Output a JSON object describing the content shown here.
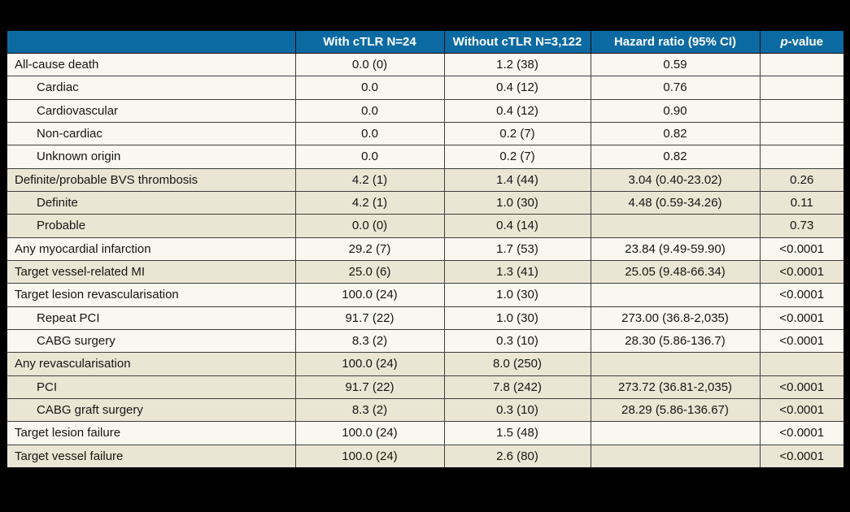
{
  "colors": {
    "header_background": "#0c6aa3",
    "header_text": "#ffffff",
    "row_plain": "#f9f7f0",
    "row_shaded": "#ebe6d4",
    "border": "#3e3e3e",
    "page_background": "#000000",
    "body_text": "#151515"
  },
  "table": {
    "columns": [
      {
        "label": ""
      },
      {
        "label": "With cTLR N=24"
      },
      {
        "label": "Without cTLR N=3,122"
      },
      {
        "label": "Hazard ratio (95% CI)"
      },
      {
        "label_italic": "p",
        "label_rest": "-value"
      }
    ],
    "rows": [
      {
        "label": "All-cause death",
        "indent": false,
        "shaded": false,
        "cells": [
          "0.0 (0)",
          "1.2 (38)",
          "0.59",
          ""
        ]
      },
      {
        "label": "Cardiac",
        "indent": true,
        "shaded": false,
        "cells": [
          "0.0",
          "0.4 (12)",
          "0.76",
          ""
        ]
      },
      {
        "label": "Cardiovascular",
        "indent": true,
        "shaded": false,
        "cells": [
          "0.0",
          "0.4 (12)",
          "0.90",
          ""
        ]
      },
      {
        "label": "Non-cardiac",
        "indent": true,
        "shaded": false,
        "cells": [
          "0.0",
          "0.2 (7)",
          "0.82",
          ""
        ]
      },
      {
        "label": "Unknown origin",
        "indent": true,
        "shaded": false,
        "cells": [
          "0.0",
          "0.2 (7)",
          "0.82",
          ""
        ]
      },
      {
        "label": "Definite/probable BVS thrombosis",
        "indent": false,
        "shaded": true,
        "cells": [
          "4.2 (1)",
          "1.4 (44)",
          "3.04 (0.40-23.02)",
          "0.26"
        ]
      },
      {
        "label": "Definite",
        "indent": true,
        "shaded": true,
        "cells": [
          "4.2 (1)",
          "1.0 (30)",
          "4.48 (0.59-34.26)",
          "0.11"
        ]
      },
      {
        "label": "Probable",
        "indent": true,
        "shaded": true,
        "cells": [
          "0.0 (0)",
          "0.4 (14)",
          "",
          "0.73"
        ]
      },
      {
        "label": "Any myocardial infarction",
        "indent": false,
        "shaded": false,
        "cells": [
          "29.2 (7)",
          "1.7 (53)",
          "23.84 (9.49-59.90)",
          "<0.0001"
        ]
      },
      {
        "label": "Target vessel-related MI",
        "indent": false,
        "shaded": true,
        "cells": [
          "25.0 (6)",
          "1.3 (41)",
          "25.05 (9.48-66.34)",
          "<0.0001"
        ]
      },
      {
        "label": "Target lesion revascularisation",
        "indent": false,
        "shaded": false,
        "cells": [
          "100.0 (24)",
          "1.0 (30)",
          "",
          "<0.0001"
        ]
      },
      {
        "label": "Repeat PCI",
        "indent": true,
        "shaded": false,
        "cells": [
          "91.7 (22)",
          "1.0 (30)",
          "273.00 (36.8-2,035)",
          "<0.0001"
        ]
      },
      {
        "label": "CABG surgery",
        "indent": true,
        "shaded": false,
        "cells": [
          "8.3 (2)",
          "0.3 (10)",
          "28.30 (5.86-136.7)",
          "<0.0001"
        ]
      },
      {
        "label": "Any revascularisation",
        "indent": false,
        "shaded": true,
        "cells": [
          "100.0 (24)",
          "8.0 (250)",
          "",
          ""
        ]
      },
      {
        "label": "PCI",
        "indent": true,
        "shaded": true,
        "cells": [
          "91.7 (22)",
          "7.8 (242)",
          "273.72 (36.81-2,035)",
          "<0.0001"
        ]
      },
      {
        "label": "CABG graft surgery",
        "indent": true,
        "shaded": true,
        "cells": [
          "8.3 (2)",
          "0.3 (10)",
          "28.29 (5.86-136.67)",
          "<0.0001"
        ]
      },
      {
        "label": "Target lesion failure",
        "indent": false,
        "shaded": false,
        "cells": [
          "100.0 (24)",
          "1.5 (48)",
          "",
          "<0.0001"
        ]
      },
      {
        "label": "Target vessel failure",
        "indent": false,
        "shaded": true,
        "cells": [
          "100.0 (24)",
          "2.6 (80)",
          "",
          "<0.0001"
        ]
      }
    ]
  }
}
